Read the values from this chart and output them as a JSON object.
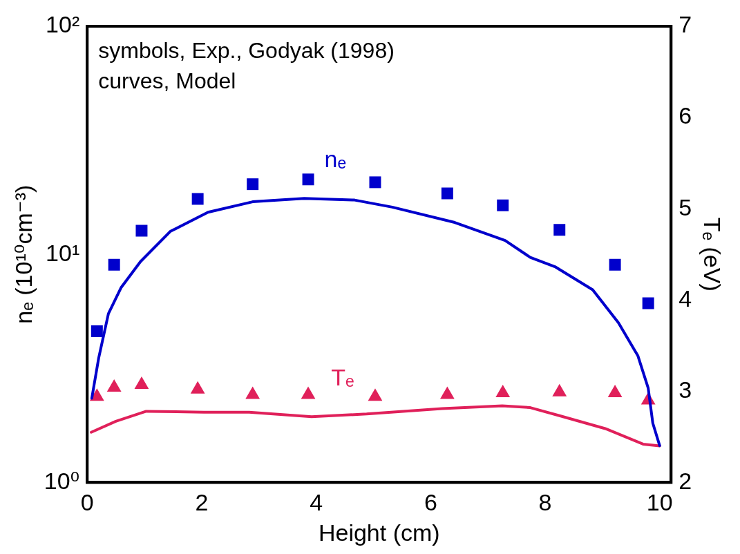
{
  "chart_data": {
    "type": "line",
    "xlabel": "Height (cm)",
    "ylabel": "nₑ (10¹⁰cm⁻³)",
    "y2label": "Tₑ (eV)",
    "annotations": [
      "symbols, Exp., Godyak (1998)",
      "curves, Model"
    ],
    "xlim": [
      0,
      10.2
    ],
    "xticks": [
      0,
      2,
      4,
      6,
      8,
      10
    ],
    "ylim": [
      1,
      100
    ],
    "yticks": [
      {
        "value": 1,
        "label": "10⁰"
      },
      {
        "value": 10,
        "label": "10¹"
      },
      {
        "value": 100,
        "label": "10²"
      }
    ],
    "y2lim": [
      2,
      7
    ],
    "y2ticks": [
      2,
      3,
      4,
      5,
      6,
      7
    ],
    "log": "y",
    "grid": false,
    "legend": false,
    "series": [
      {
        "type": "scatter",
        "marker": "square",
        "color": "#0000cc",
        "x": [
          0.17,
          0.47,
          0.95,
          1.93,
          2.89,
          3.86,
          5.03,
          6.29,
          7.26,
          8.25,
          9.22,
          9.8
        ],
        "values": [
          4.6,
          9.0,
          12.7,
          17.5,
          20.3,
          21.3,
          20.7,
          18.5,
          16.4,
          12.8,
          9.0,
          6.1
        ]
      },
      {
        "type": "line",
        "name": "nₑ",
        "marker": "none",
        "color": "#0000cc",
        "x": [
          0.08,
          0.2,
          0.37,
          0.59,
          0.93,
          1.45,
          2.11,
          2.89,
          3.79,
          4.67,
          5.33,
          6.42,
          7.3,
          7.74,
          8.17,
          8.83,
          9.28,
          9.62,
          9.8,
          9.88,
          10.0
        ],
        "values": [
          2.34,
          3.51,
          5.49,
          7.14,
          9.29,
          12.6,
          15.3,
          17.0,
          17.6,
          17.3,
          16.1,
          13.8,
          11.5,
          9.7,
          8.83,
          6.99,
          5.01,
          3.59,
          2.59,
          1.82,
          1.45
        ]
      },
      {
        "type": "scatter",
        "marker": "triangle",
        "axis": "y2",
        "color": "#e0205a",
        "x": [
          0.17,
          0.47,
          0.95,
          1.93,
          2.89,
          3.86,
          5.03,
          6.29,
          7.26,
          8.25,
          9.22,
          9.8
        ],
        "values": [
          2.94,
          3.04,
          3.07,
          3.02,
          2.96,
          2.96,
          2.94,
          2.96,
          2.98,
          2.99,
          2.98,
          2.9
        ]
      },
      {
        "type": "line",
        "name": "Tₑ",
        "marker": "none",
        "axis": "y2",
        "color": "#e0205a",
        "x": [
          0.07,
          0.5,
          1.03,
          2.04,
          2.83,
          3.92,
          4.88,
          6.2,
          7.25,
          7.74,
          8.26,
          9.05,
          9.71,
          10.0
        ],
        "values": [
          2.55,
          2.67,
          2.78,
          2.77,
          2.77,
          2.72,
          2.75,
          2.81,
          2.84,
          2.82,
          2.73,
          2.59,
          2.42,
          2.4
        ]
      }
    ]
  }
}
